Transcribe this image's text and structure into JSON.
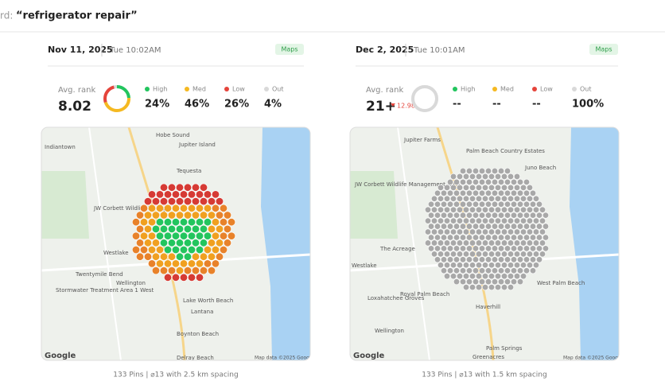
{
  "header": {
    "prefix": "rd:",
    "keyword": "“refrigerator repair”"
  },
  "panels": [
    {
      "date": "Nov 11, 2025",
      "time": "Tue 10:02AM",
      "badge": "Maps",
      "avg_label": "Avg. rank",
      "avg": "8.02",
      "change": null,
      "legend": [
        {
          "name": "High",
          "color": "#22c55e",
          "value": 24,
          "label": "24%"
        },
        {
          "name": "Med",
          "color": "#f5b921",
          "value": 46,
          "label": "46%"
        },
        {
          "name": "Low",
          "color": "#e5443b",
          "value": 26,
          "label": "26%"
        },
        {
          "name": "Out",
          "color": "#d9d9d9",
          "value": 4,
          "label": "4%"
        }
      ],
      "map_labels": [
        "Indiantown",
        "Hobe Sound",
        "Jupiter Island",
        "Tequesta",
        "JW Corbett Wildlife Manage",
        "Westlake",
        "Twentymile Bend",
        "Wellington",
        "Stormwater Treatment Area 1 West",
        "Lake Worth Beach",
        "Lantana",
        "Boynton Beach",
        "Delray Beach",
        "Google",
        "Map data ©2025 Google"
      ],
      "footer": "133 Pins | ⌀13 with 2.5 km spacing"
    },
    {
      "date": "Dec 2, 2025",
      "time": "Tue 10:01AM",
      "badge": "Maps",
      "avg_label": "Avg. rank",
      "avg": "21+",
      "change": "12.98",
      "legend": [
        {
          "name": "High",
          "color": "#22c55e",
          "value": null,
          "label": "--"
        },
        {
          "name": "Med",
          "color": "#f5b921",
          "value": null,
          "label": "--"
        },
        {
          "name": "Low",
          "color": "#e5443b",
          "value": null,
          "label": "--"
        },
        {
          "name": "Out",
          "color": "#d9d9d9",
          "value": 100,
          "label": "100%"
        }
      ],
      "map_labels": [
        "Jupiter Farms",
        "Palm Beach Country Estates",
        "Juno Beach",
        "JW Corbett Wildlife Management Area",
        "The Acreage",
        "Westlake",
        "Loxahatchee Groves",
        "Royal Palm Beach",
        "West Palm Beach",
        "Haverhill",
        "Wellington",
        "Palm Springs",
        "Greenacres",
        "Google",
        "Map data ©2025 Google"
      ],
      "footer": "133 Pins | ⌀13 with 1.5 km spacing"
    }
  ]
}
